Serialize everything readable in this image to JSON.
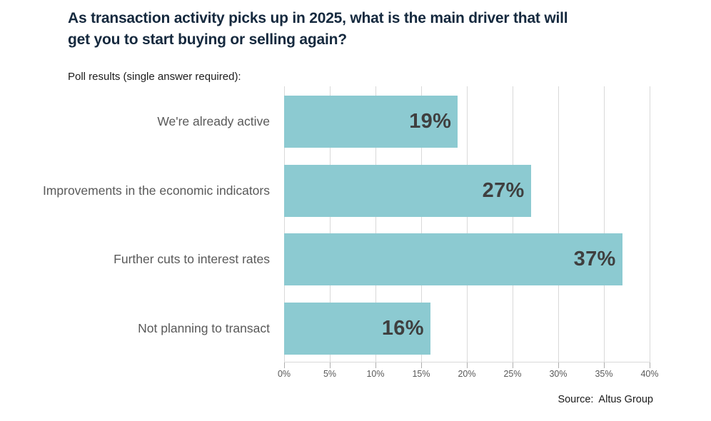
{
  "page": {
    "title_line1": "As transaction activity picks up in 2025, what is the main driver that will",
    "title_line2": "get you to start buying or selling again?",
    "subtitle": "Poll results (single answer required):",
    "source_prefix": "Source:",
    "source_value": "Altus Group"
  },
  "colors": {
    "title_color": "#15293e",
    "bar_color": "#8ccad1",
    "category_label_color": "#595959",
    "value_label_color": "#3f3f3f",
    "axis_label_color": "#595959",
    "gridline_color": "#d9d9d9"
  },
  "chart_data": {
    "type": "bar",
    "orientation": "horizontal",
    "title": "As transaction activity picks up in 2025, what is the main driver that will get you to start buying or selling again?",
    "subtitle": "Poll results (single answer required):",
    "categories": [
      "We're already active",
      "Improvements in the economic indicators",
      "Further cuts to interest rates",
      "Not planning to transact"
    ],
    "values": [
      19,
      27,
      37,
      16
    ],
    "value_labels": [
      "19%",
      "27%",
      "37%",
      "16%"
    ],
    "xlim": [
      0,
      40
    ],
    "x_tick_step": 5,
    "x_tick_labels": [
      "0%",
      "5%",
      "10%",
      "15%",
      "20%",
      "25%",
      "30%",
      "35%",
      "40%"
    ],
    "grid": true,
    "legend": false,
    "source": "Source:  Altus Group"
  }
}
